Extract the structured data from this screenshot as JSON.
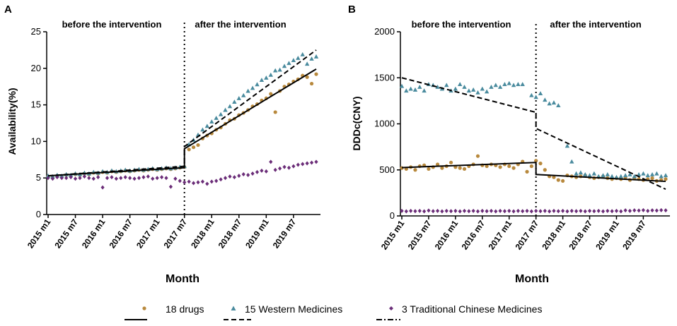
{
  "chart_data": [
    {
      "type": "scatter",
      "panel_label": "A",
      "ylabel": "Availability(%)",
      "xlabel": "Month",
      "ylim": [
        0,
        25
      ],
      "yticks": [
        0,
        5,
        10,
        15,
        20,
        25
      ],
      "xlim": [
        0,
        59
      ],
      "xticks": [
        {
          "label": "2015 m1",
          "index": 0
        },
        {
          "label": "2015 m7",
          "index": 6
        },
        {
          "label": "2016 m1",
          "index": 12
        },
        {
          "label": "2016 m7",
          "index": 18
        },
        {
          "label": "2017 m1",
          "index": 24
        },
        {
          "label": "2017 m7",
          "index": 30
        },
        {
          "label": "2018 m1",
          "index": 36
        },
        {
          "label": "2018 m7",
          "index": 42
        },
        {
          "label": "2019 m1",
          "index": 48
        },
        {
          "label": "2019 m7",
          "index": 54
        }
      ],
      "intervention_index": 30,
      "annotations": {
        "before": "before the intervention",
        "after": "after the intervention"
      },
      "series": [
        {
          "name": "18 drugs",
          "color": "#b8893d",
          "marker": "circle",
          "values": [
            5.2,
            5.1,
            5.3,
            5.2,
            5.4,
            5.3,
            5.5,
            5.4,
            5.6,
            5.5,
            5.7,
            5.6,
            5.8,
            5.7,
            5.9,
            5.8,
            5.9,
            6.0,
            5.9,
            6.0,
            6.1,
            6.0,
            6.1,
            6.2,
            6.1,
            6.2,
            6.3,
            6.2,
            6.3,
            6.4,
            6.5,
            8.9,
            9.2,
            9.5,
            10.4,
            10.8,
            11.1,
            11.6,
            11.9,
            12.4,
            12.9,
            13.1,
            13.6,
            13.9,
            14.3,
            14.8,
            15.1,
            15.6,
            15.9,
            16.5,
            14.0,
            16.9,
            17.5,
            17.8,
            18.2,
            18.5,
            19.0,
            18.8,
            17.9,
            19.2
          ]
        },
        {
          "name": "15 Western Medicines",
          "color": "#4a8b9e",
          "marker": "triangle",
          "values": [
            5.3,
            5.2,
            5.4,
            5.3,
            5.5,
            5.4,
            5.6,
            5.5,
            5.7,
            5.6,
            5.8,
            5.7,
            5.9,
            5.8,
            6.0,
            5.9,
            6.0,
            6.1,
            6.0,
            6.1,
            6.2,
            6.1,
            6.2,
            6.3,
            6.2,
            6.3,
            6.4,
            6.3,
            6.4,
            6.5,
            6.6,
            9.6,
            10.2,
            10.9,
            11.6,
            12.1,
            12.7,
            13.2,
            13.7,
            14.3,
            14.8,
            15.4,
            15.9,
            16.3,
            16.9,
            17.3,
            17.8,
            18.4,
            18.7,
            19.1,
            19.7,
            19.8,
            20.3,
            20.7,
            21.1,
            21.4,
            21.9,
            20.6,
            21.3,
            21.6
          ]
        },
        {
          "name": "3 Traditional Chinese Medicines",
          "color": "#6b2d78",
          "marker": "diamond",
          "values": [
            5.0,
            4.9,
            5.1,
            5.0,
            5.0,
            5.1,
            4.9,
            5.0,
            5.2,
            5.0,
            4.9,
            5.1,
            3.7,
            5.0,
            5.1,
            4.9,
            5.0,
            5.1,
            5.0,
            4.9,
            5.0,
            5.1,
            5.2,
            4.9,
            5.0,
            5.1,
            5.0,
            3.8,
            4.9,
            4.6,
            4.4,
            4.5,
            4.3,
            4.4,
            4.5,
            4.2,
            4.5,
            4.6,
            4.8,
            5.0,
            5.2,
            5.1,
            5.3,
            5.5,
            5.4,
            5.6,
            5.8,
            6.0,
            5.9,
            7.2,
            6.1,
            6.3,
            6.5,
            6.4,
            6.6,
            6.8,
            6.9,
            7.0,
            7.1,
            7.2
          ]
        }
      ],
      "trend_lines": [
        {
          "series": "18 drugs",
          "style": "solid",
          "before": [
            [
              0,
              5.3
            ],
            [
              30,
              6.4
            ]
          ],
          "after": [
            [
              30,
              9.0
            ],
            [
              59,
              19.9
            ]
          ]
        },
        {
          "series": "15 Western Medicines",
          "style": "dashed",
          "before": [
            [
              0,
              5.3
            ],
            [
              30,
              6.6
            ]
          ],
          "after": [
            [
              30,
              9.3
            ],
            [
              59,
              22.5
            ]
          ]
        }
      ]
    },
    {
      "type": "scatter",
      "panel_label": "B",
      "ylabel": "DDDc(CNY)",
      "xlabel": "Month",
      "ylim": [
        0,
        2000
      ],
      "yticks": [
        0,
        500,
        1000,
        1500,
        2000
      ],
      "xlim": [
        0,
        59
      ],
      "xticks": [
        {
          "label": "2015 m1",
          "index": 0
        },
        {
          "label": "2015 m7",
          "index": 6
        },
        {
          "label": "2016 m1",
          "index": 12
        },
        {
          "label": "2016 m7",
          "index": 18
        },
        {
          "label": "2017 m1",
          "index": 24
        },
        {
          "label": "2017 m7",
          "index": 30
        },
        {
          "label": "2018 m1",
          "index": 36
        },
        {
          "label": "2018 m7",
          "index": 42
        },
        {
          "label": "2019 m1",
          "index": 48
        },
        {
          "label": "2019 m7",
          "index": 54
        }
      ],
      "intervention_index": 30,
      "annotations": {
        "before": "before the intervention",
        "after": "after the intervention"
      },
      "series": [
        {
          "name": "18 drugs",
          "color": "#b8893d",
          "marker": "circle",
          "values": [
            520,
            510,
            530,
            500,
            540,
            550,
            510,
            530,
            560,
            520,
            540,
            580,
            530,
            520,
            510,
            540,
            560,
            650,
            550,
            540,
            560,
            550,
            530,
            560,
            540,
            520,
            560,
            590,
            480,
            540,
            600,
            570,
            500,
            430,
            420,
            390,
            380,
            440,
            430,
            420,
            430,
            440,
            420,
            410,
            420,
            430,
            410,
            400,
            410,
            400,
            420,
            390,
            410,
            400,
            390,
            400,
            410,
            380,
            390,
            400
          ]
        },
        {
          "name": "15 Western Medicines",
          "color": "#4a8b9e",
          "marker": "triangle",
          "values": [
            1410,
            1360,
            1380,
            1370,
            1400,
            1360,
            1430,
            1420,
            1400,
            1380,
            1420,
            1360,
            1380,
            1430,
            1400,
            1360,
            1370,
            1340,
            1380,
            1350,
            1400,
            1420,
            1400,
            1430,
            1440,
            1420,
            1430,
            1430,
            null,
            1310,
            1290,
            1330,
            1260,
            1220,
            1230,
            1200,
            null,
            760,
            590,
            460,
            470,
            450,
            440,
            460,
            430,
            440,
            450,
            430,
            420,
            430,
            440,
            450,
            430,
            450,
            460,
            440,
            450,
            460,
            430,
            440
          ]
        },
        {
          "name": "3 Traditional Chinese Medicines",
          "color": "#6b2d78",
          "marker": "diamond",
          "values": [
            55,
            50,
            55,
            52,
            55,
            50,
            58,
            52,
            55,
            50,
            55,
            52,
            55,
            50,
            55,
            52,
            55,
            50,
            55,
            52,
            55,
            50,
            55,
            52,
            55,
            50,
            55,
            52,
            55,
            50,
            55,
            52,
            55,
            50,
            55,
            52,
            55,
            50,
            55,
            52,
            55,
            50,
            55,
            52,
            55,
            50,
            55,
            52,
            55,
            50,
            60,
            55,
            60,
            58,
            62,
            55,
            60,
            58,
            62,
            60
          ]
        }
      ],
      "trend_lines": [
        {
          "series": "18 drugs",
          "style": "solid",
          "before": [
            [
              0,
              525
            ],
            [
              30,
              580
            ]
          ],
          "after": [
            [
              30,
              450
            ],
            [
              59,
              375
            ]
          ]
        },
        {
          "series": "15 Western Medicines",
          "style": "dashed",
          "before": [
            [
              0,
              1500
            ],
            [
              30,
              1125
            ]
          ],
          "after": [
            [
              30,
              950
            ],
            [
              59,
              290
            ]
          ]
        }
      ]
    }
  ],
  "legend": [
    {
      "label": "18 drugs",
      "marker": "circle",
      "color": "#b8893d",
      "line": "solid"
    },
    {
      "label": "15 Western Medicines",
      "marker": "triangle",
      "color": "#4a8b9e",
      "line": "dashed"
    },
    {
      "label": "3 Traditional Chinese Medicines",
      "marker": "diamond",
      "color": "#6b2d78",
      "line": "dashdot"
    }
  ]
}
